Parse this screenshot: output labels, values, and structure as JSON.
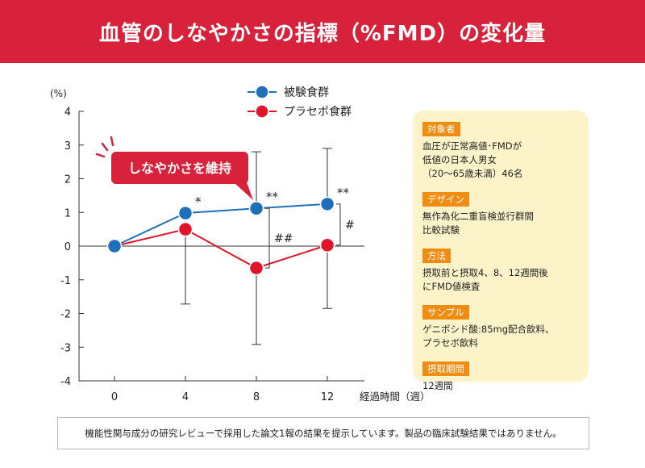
{
  "header": {
    "title": "血管のしなやかさの指標（%FMD）の変化量"
  },
  "chart_data": {
    "type": "line",
    "y_unit_label": "(%)",
    "xlabel": "経過時間（週）",
    "categories": [
      0,
      4,
      8,
      12
    ],
    "x_tick_labels": [
      "0",
      "4",
      "8",
      "12"
    ],
    "y_ticks": [
      4,
      3,
      2,
      1,
      0,
      -1,
      -2,
      -3,
      -4
    ],
    "y_tick_labels": [
      "4",
      "3",
      "2",
      "1",
      "0",
      "-1",
      "-2",
      "-3",
      "-4"
    ],
    "ylim": [
      -4,
      4
    ],
    "grid": false,
    "legend_position": "top",
    "series": [
      {
        "name": "被験食群",
        "color": "#1f6fba",
        "values": [
          0,
          0.98,
          1.12,
          1.25
        ],
        "error_upper": [
          null,
          null,
          2.8,
          2.9
        ],
        "error_lower": [
          null,
          null,
          null,
          null
        ],
        "markers": [
          "",
          "*",
          "**",
          "**"
        ]
      },
      {
        "name": "プラセボ食群",
        "color": "#e0152a",
        "values": [
          0,
          0.5,
          -0.65,
          0.03
        ],
        "error_upper": [
          null,
          null,
          null,
          null
        ],
        "error_lower": [
          null,
          -1.72,
          -2.92,
          -1.85
        ],
        "markers": [
          "",
          "",
          "",
          ""
        ]
      }
    ],
    "between_group_marks": [
      {
        "x": 8,
        "label": "##"
      },
      {
        "x": 12,
        "label": "#"
      }
    ],
    "callout": {
      "text": "しなやかさを維持",
      "color": "#d8213a"
    }
  },
  "info_panel": [
    {
      "label": "対象者",
      "text": "血圧が正常高値･FMDが\n低値の日本人男女\n（20〜65歳未満）46名"
    },
    {
      "label": "デザイン",
      "text": "無作為化二重盲検並行群間\n比較試験"
    },
    {
      "label": "方法",
      "text": "摂取前と摂取4、8、12週間後\nにFMD値検査"
    },
    {
      "label": "サンプル",
      "text": "ゲニポシド酸:85mg配合飲料、\nプラセボ飲料"
    },
    {
      "label": "摂取期間",
      "text": "12週間"
    }
  ],
  "footer": {
    "text": "機能性関与成分の研究レビューで採用した論文1報の結果を提示しています。製品の臨床試験結果ではありません。"
  }
}
